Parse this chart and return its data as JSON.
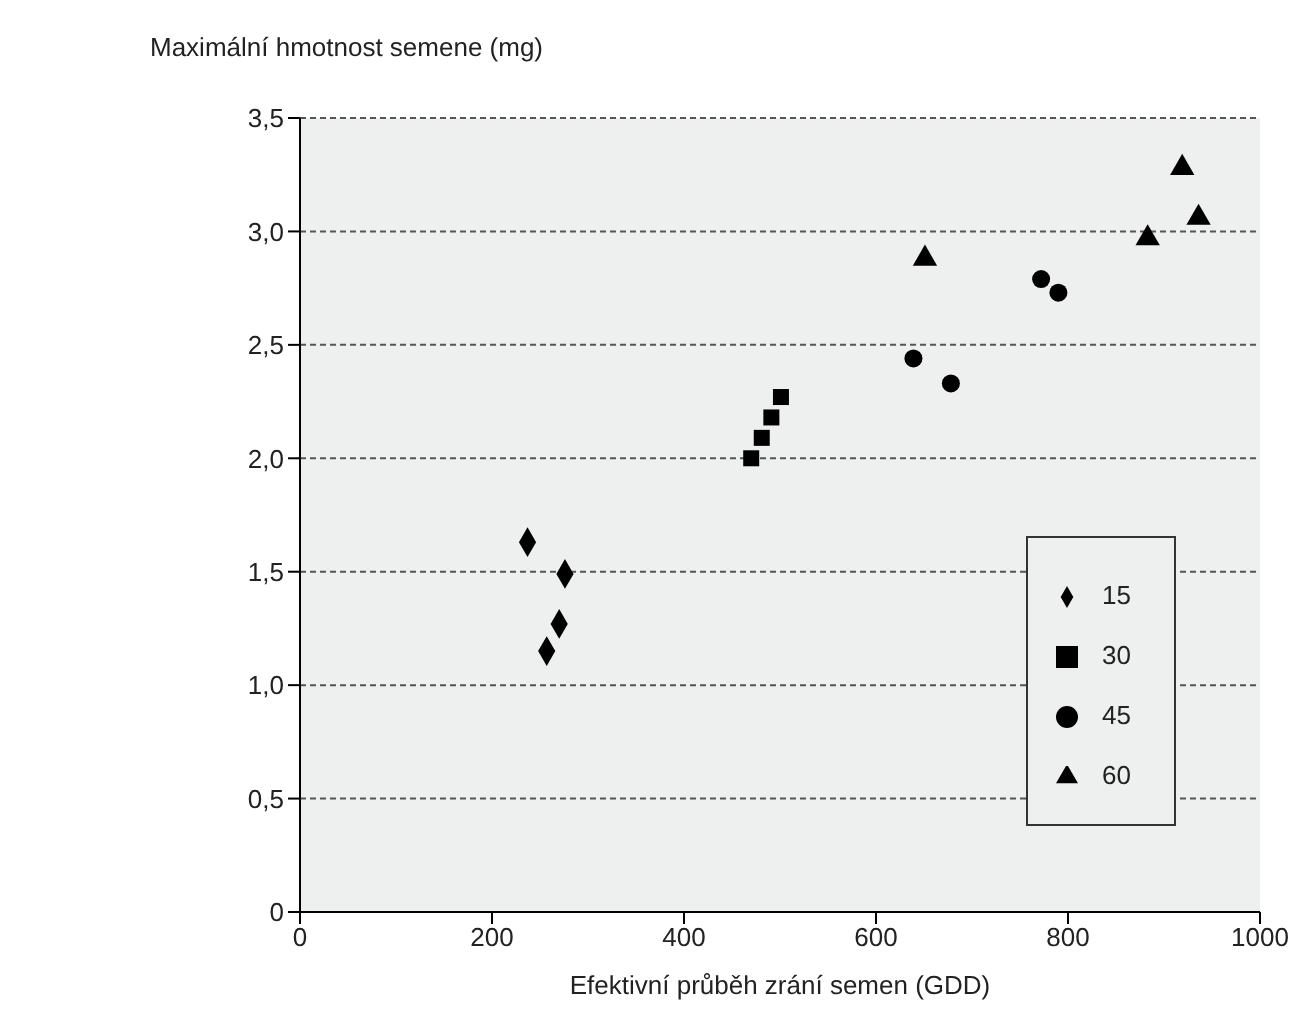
{
  "chart_data": {
    "type": "scatter",
    "ylabel": "Maximální hmotnost semene (mg)",
    "xlabel": "Efektivní průběh zrání semen (GDD)",
    "xlim": [
      0,
      1000
    ],
    "xticks": [
      0,
      200,
      400,
      600,
      800,
      1000
    ],
    "ylim": [
      0,
      3.5
    ],
    "yticks": [
      {
        "value": 0,
        "label": "0"
      },
      {
        "value": 0.5,
        "label": "0,5"
      },
      {
        "value": 1,
        "label": "1,0"
      },
      {
        "value": 1.5,
        "label": "1,5"
      },
      {
        "value": 2,
        "label": "2,0"
      },
      {
        "value": 2.5,
        "label": "2,5"
      },
      {
        "value": 3,
        "label": "3,0"
      },
      {
        "value": 3.5,
        "label": "3,5"
      }
    ],
    "grid": "y",
    "legend": "bottom right",
    "series": [
      {
        "name": "15",
        "color": "#000000",
        "marker": "diamond",
        "x": [
          237,
          276,
          270,
          257
        ],
        "values": [
          1.63,
          1.49,
          1.27,
          1.15
        ]
      },
      {
        "name": "30",
        "color": "#000000",
        "marker": "square",
        "x": [
          470,
          481,
          491,
          501
        ],
        "values": [
          2.0,
          2.09,
          2.18,
          2.27
        ]
      },
      {
        "name": "45",
        "color": "#000000",
        "marker": "circle",
        "x": [
          639,
          678,
          772,
          790
        ],
        "values": [
          2.44,
          2.33,
          2.79,
          2.73
        ]
      },
      {
        "name": "60",
        "color": "#000000",
        "marker": "triangle",
        "x": [
          651,
          883,
          919,
          936
        ],
        "values": [
          2.88,
          2.97,
          3.28,
          3.06
        ]
      }
    ]
  }
}
